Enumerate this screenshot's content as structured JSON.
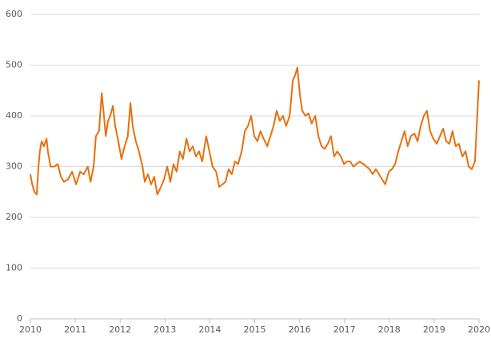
{
  "chart_data": {
    "type": "line",
    "x": [
      2010.0,
      2010.04,
      2010.09,
      2010.14,
      2010.18,
      2010.21,
      2010.25,
      2010.3,
      2010.36,
      2010.39,
      2010.45,
      2010.53,
      2010.61,
      2010.68,
      2010.75,
      2010.84,
      2010.93,
      2011.02,
      2011.11,
      2011.19,
      2011.28,
      2011.34,
      2011.41,
      2011.46,
      2011.53,
      2011.59,
      2011.64,
      2011.68,
      2011.73,
      2011.78,
      2011.84,
      2011.89,
      2011.96,
      2012.03,
      2012.1,
      2012.17,
      2012.23,
      2012.28,
      2012.35,
      2012.42,
      2012.5,
      2012.55,
      2012.62,
      2012.69,
      2012.76,
      2012.83,
      2012.91,
      2012.98,
      2013.05,
      2013.12,
      2013.19,
      2013.26,
      2013.33,
      2013.4,
      2013.48,
      2013.55,
      2013.62,
      2013.69,
      2013.76,
      2013.83,
      2013.92,
      2013.99,
      2014.06,
      2014.14,
      2014.21,
      2014.28,
      2014.35,
      2014.42,
      2014.49,
      2014.56,
      2014.63,
      2014.71,
      2014.78,
      2014.85,
      2014.92,
      2014.99,
      2015.06,
      2015.13,
      2015.2,
      2015.28,
      2015.35,
      2015.42,
      2015.49,
      2015.56,
      2015.63,
      2015.7,
      2015.78,
      2015.85,
      2015.9,
      2015.95,
      2016.01,
      2016.06,
      2016.13,
      2016.2,
      2016.27,
      2016.35,
      2016.42,
      2016.49,
      2016.56,
      2016.63,
      2016.7,
      2016.77,
      2016.84,
      2016.92,
      2016.99,
      2017.06,
      2017.13,
      2017.2,
      2017.27,
      2017.34,
      2017.42,
      2017.49,
      2017.56,
      2017.63,
      2017.7,
      2017.77,
      2017.84,
      2017.91,
      2017.99,
      2018.06,
      2018.13,
      2018.2,
      2018.27,
      2018.34,
      2018.41,
      2018.48,
      2018.56,
      2018.63,
      2018.7,
      2018.77,
      2018.84,
      2018.91,
      2018.98,
      2019.06,
      2019.13,
      2019.2,
      2019.27,
      2019.34,
      2019.41,
      2019.48,
      2019.55,
      2019.63,
      2019.7,
      2019.77,
      2019.84,
      2019.91,
      2019.96,
      2020.0
    ],
    "series": [
      {
        "color": "#e8700e",
        "values": [
          285,
          265,
          250,
          245,
          300,
          330,
          350,
          340,
          355,
          330,
          300,
          300,
          305,
          280,
          270,
          275,
          290,
          265,
          290,
          285,
          300,
          270,
          300,
          360,
          370,
          445,
          400,
          360,
          390,
          400,
          420,
          380,
          350,
          315,
          340,
          360,
          425,
          380,
          350,
          330,
          300,
          270,
          285,
          265,
          280,
          245,
          260,
          275,
          300,
          270,
          305,
          290,
          330,
          315,
          355,
          330,
          340,
          320,
          330,
          310,
          360,
          330,
          300,
          290,
          260,
          265,
          270,
          295,
          285,
          310,
          305,
          330,
          370,
          380,
          400,
          360,
          350,
          370,
          355,
          340,
          360,
          380,
          410,
          390,
          400,
          380,
          400,
          470,
          480,
          495,
          440,
          410,
          400,
          405,
          385,
          400,
          360,
          340,
          335,
          345,
          360,
          320,
          330,
          320,
          305,
          310,
          310,
          300,
          305,
          310,
          305,
          300,
          295,
          285,
          295,
          285,
          275,
          265,
          290,
          295,
          305,
          330,
          350,
          370,
          340,
          360,
          365,
          350,
          380,
          400,
          410,
          370,
          355,
          345,
          360,
          375,
          350,
          345,
          370,
          340,
          345,
          320,
          330,
          300,
          295,
          310,
          400,
          470
        ]
      }
    ],
    "xlim": [
      2010,
      2020
    ],
    "xticks": [
      2010,
      2011,
      2012,
      2013,
      2014,
      2015,
      2016,
      2017,
      2018,
      2019,
      2020
    ],
    "ylim": [
      0,
      600
    ],
    "yticks": [
      0,
      100,
      200,
      300,
      400,
      500,
      600
    ],
    "grid": true
  }
}
